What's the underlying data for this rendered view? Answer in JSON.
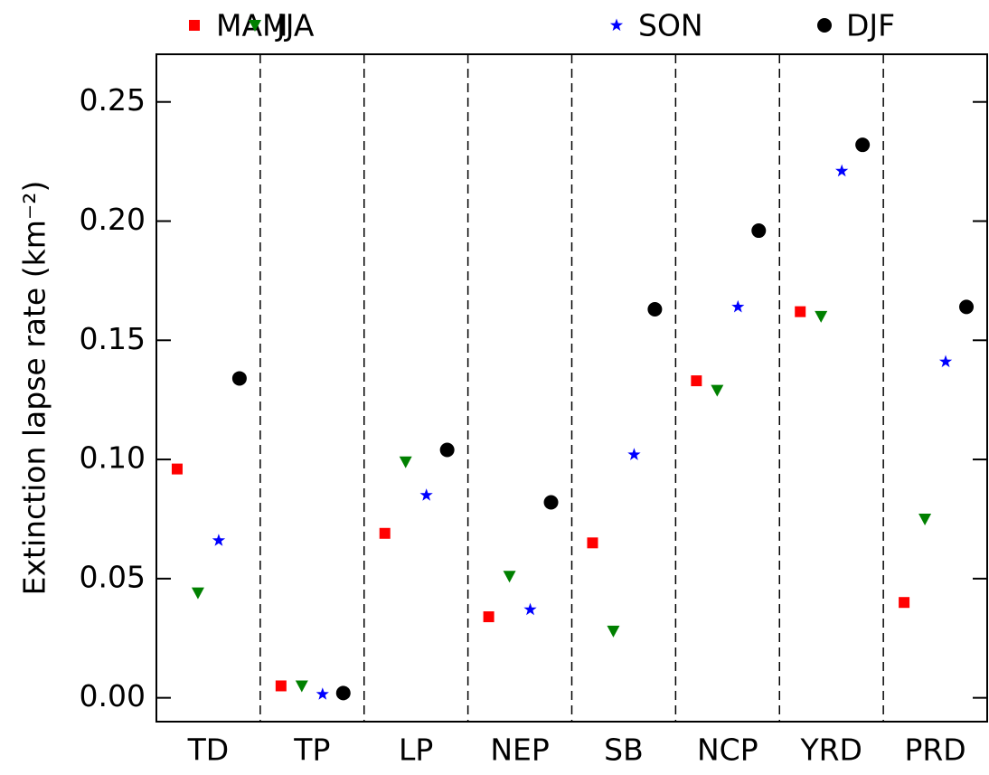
{
  "chart_data": {
    "type": "scatter",
    "y_label": "Extinction lapse rate (km⁻²)",
    "categories": [
      "TD",
      "TP",
      "LP",
      "NEP",
      "SB",
      "NCP",
      "YRD",
      "PRD"
    ],
    "series": [
      {
        "name": "MAM",
        "color": "#ff0000",
        "marker": "square",
        "values": [
          0.096,
          0.005,
          0.069,
          0.034,
          0.065,
          0.133,
          0.162,
          0.04
        ]
      },
      {
        "name": "JJA",
        "color": "#008000",
        "marker": "triangle-down",
        "values": [
          0.044,
          0.005,
          0.099,
          0.051,
          0.028,
          0.129,
          0.16,
          0.075
        ]
      },
      {
        "name": "SON",
        "color": "#0000ff",
        "marker": "star",
        "values": [
          0.066,
          0.0015,
          0.085,
          0.037,
          0.102,
          0.164,
          0.221,
          0.141
        ]
      },
      {
        "name": "DJF",
        "color": "#000000",
        "marker": "circle",
        "values": [
          0.134,
          0.002,
          0.104,
          0.082,
          0.163,
          0.196,
          0.232,
          0.164
        ]
      }
    ],
    "ylim": [
      -0.01,
      0.27
    ],
    "yticks": [
      {
        "value": 0,
        "label": "0.00"
      },
      0.05,
      {
        "value": 0.1,
        "label": "0.10"
      },
      0.15,
      {
        "value": 0.2,
        "label": "0.20"
      },
      0.25
    ]
  }
}
